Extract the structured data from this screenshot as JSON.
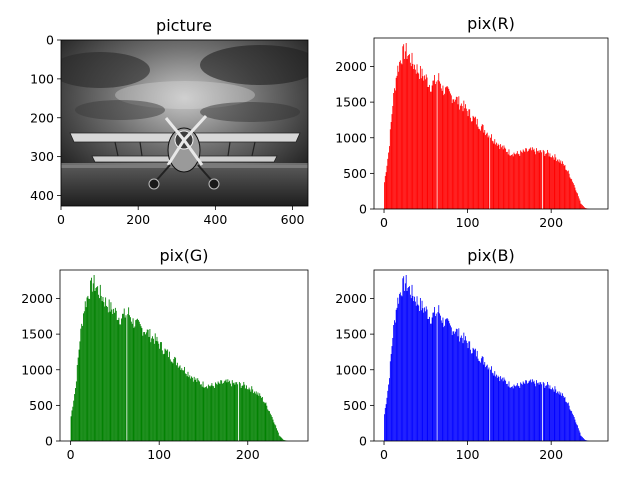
{
  "chart_data": [
    {
      "type": "image",
      "title": "picture",
      "xlim": [
        0,
        640
      ],
      "ylim": [
        0,
        427
      ],
      "y_inverted": true,
      "xticks": [
        0,
        200,
        400,
        600
      ],
      "yticks": [
        0,
        100,
        200,
        300,
        400
      ],
      "xtick_labels": [
        "0",
        "200",
        "400",
        "600"
      ],
      "ytick_labels": [
        "0",
        "100",
        "200",
        "300",
        "400"
      ],
      "content": "grayscale photo of a biplane under a dramatic cloudy sky"
    },
    {
      "type": "bar",
      "title": "pix(R)",
      "color": "#ff0000",
      "xlim": [
        -12,
        268
      ],
      "ylim": [
        0,
        2400
      ],
      "xticks": [
        0,
        100,
        200
      ],
      "yticks": [
        0,
        500,
        1000,
        1500,
        2000
      ],
      "xtick_labels": [
        "0",
        "100",
        "200"
      ],
      "ytick_labels": [
        "0",
        "500",
        "1000",
        "1500",
        "2000"
      ],
      "x": [
        0,
        5,
        10,
        15,
        20,
        25,
        30,
        35,
        40,
        45,
        50,
        55,
        60,
        65,
        70,
        75,
        80,
        85,
        90,
        95,
        100,
        105,
        110,
        115,
        120,
        125,
        130,
        135,
        140,
        145,
        150,
        155,
        160,
        165,
        170,
        175,
        180,
        185,
        190,
        195,
        200,
        205,
        210,
        215,
        220,
        225,
        230,
        235,
        240,
        245
      ],
      "values": [
        380,
        800,
        1500,
        1950,
        2150,
        2250,
        2150,
        2050,
        1970,
        1900,
        1850,
        1750,
        1800,
        1850,
        1700,
        1650,
        1600,
        1570,
        1500,
        1450,
        1380,
        1300,
        1240,
        1180,
        1120,
        1060,
        1000,
        940,
        880,
        840,
        800,
        790,
        780,
        800,
        820,
        830,
        820,
        810,
        800,
        790,
        760,
        730,
        680,
        620,
        520,
        400,
        250,
        80,
        15,
        0
      ],
      "gaps": [
        63,
        126,
        189
      ]
    },
    {
      "type": "bar",
      "title": "pix(G)",
      "color": "#008000",
      "xlim": [
        -12,
        268
      ],
      "ylim": [
        0,
        2400
      ],
      "xticks": [
        0,
        100,
        200
      ],
      "yticks": [
        0,
        500,
        1000,
        1500,
        2000
      ],
      "xtick_labels": [
        "0",
        "100",
        "200"
      ],
      "ytick_labels": [
        "0",
        "500",
        "1000",
        "1500",
        "2000"
      ],
      "x": [
        0,
        5,
        10,
        15,
        20,
        25,
        30,
        35,
        40,
        45,
        50,
        55,
        60,
        65,
        70,
        75,
        80,
        85,
        90,
        95,
        100,
        105,
        110,
        115,
        120,
        125,
        130,
        135,
        140,
        145,
        150,
        155,
        160,
        165,
        170,
        175,
        180,
        185,
        190,
        195,
        200,
        205,
        210,
        215,
        220,
        225,
        230,
        235,
        240,
        245
      ],
      "values": [
        350,
        750,
        1450,
        1900,
        2100,
        2250,
        2150,
        2050,
        1950,
        1880,
        1830,
        1740,
        1780,
        1820,
        1690,
        1640,
        1590,
        1560,
        1490,
        1440,
        1370,
        1290,
        1230,
        1170,
        1110,
        1050,
        990,
        930,
        870,
        830,
        800,
        790,
        780,
        800,
        820,
        830,
        820,
        810,
        800,
        790,
        760,
        730,
        680,
        620,
        520,
        400,
        250,
        80,
        15,
        0
      ],
      "gaps": [
        63,
        189
      ]
    },
    {
      "type": "bar",
      "title": "pix(B)",
      "color": "#0000ff",
      "xlim": [
        -12,
        268
      ],
      "ylim": [
        0,
        2400
      ],
      "xticks": [
        0,
        100,
        200
      ],
      "yticks": [
        0,
        500,
        1000,
        1500,
        2000
      ],
      "xtick_labels": [
        "0",
        "100",
        "200"
      ],
      "ytick_labels": [
        "0",
        "500",
        "1000",
        "1500",
        "2000"
      ],
      "x": [
        0,
        5,
        10,
        15,
        20,
        25,
        30,
        35,
        40,
        45,
        50,
        55,
        60,
        65,
        70,
        75,
        80,
        85,
        90,
        95,
        100,
        105,
        110,
        115,
        120,
        125,
        130,
        135,
        140,
        145,
        150,
        155,
        160,
        165,
        170,
        175,
        180,
        185,
        190,
        195,
        200,
        205,
        210,
        215,
        220,
        225,
        230,
        235,
        240,
        245
      ],
      "values": [
        380,
        800,
        1500,
        1950,
        2150,
        2250,
        2150,
        2050,
        1970,
        1900,
        1850,
        1750,
        1800,
        1850,
        1700,
        1650,
        1600,
        1570,
        1500,
        1450,
        1380,
        1300,
        1240,
        1180,
        1120,
        1060,
        1000,
        940,
        880,
        840,
        800,
        790,
        780,
        800,
        820,
        830,
        820,
        810,
        800,
        790,
        760,
        730,
        680,
        620,
        520,
        400,
        250,
        80,
        15,
        0
      ],
      "gaps": [
        63,
        126,
        189
      ]
    }
  ]
}
